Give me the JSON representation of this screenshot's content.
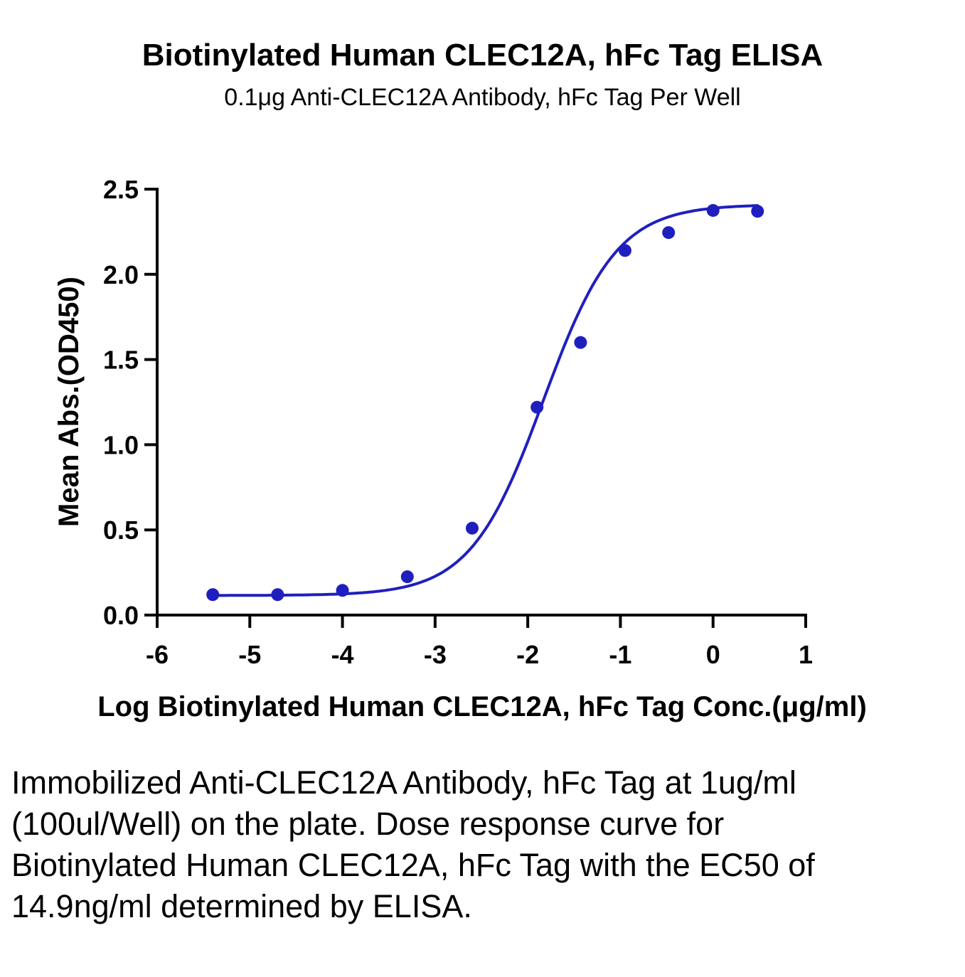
{
  "chart_data": {
    "type": "scatter",
    "title": "Biotinylated Human CLEC12A, hFc Tag ELISA",
    "subtitle": "0.1μg Anti-CLEC12A Antibody, hFc Tag Per Well",
    "xlabel": "Log Biotinylated Human CLEC12A, hFc Tag Conc.(μg/ml)",
    "ylabel": "Mean Abs.(OD450)",
    "xlim": [
      -6,
      1
    ],
    "ylim": [
      0,
      2.5
    ],
    "x_ticks": [
      -6,
      -5,
      -4,
      -3,
      -2,
      -1,
      0,
      1
    ],
    "x_tick_labels": [
      "-6",
      "-5",
      "-4",
      "-3",
      "-2",
      "-1",
      "0",
      "1"
    ],
    "y_ticks": [
      0,
      0.5,
      1.0,
      1.5,
      2.0,
      2.5
    ],
    "y_tick_labels": [
      "0.0",
      "0.5",
      "1.0",
      "1.5",
      "2.0",
      "2.5"
    ],
    "grid": false,
    "color": "#1f1fbf",
    "points": [
      {
        "x": -5.4,
        "y": 0.12
      },
      {
        "x": -4.7,
        "y": 0.12
      },
      {
        "x": -4.0,
        "y": 0.145
      },
      {
        "x": -3.3,
        "y": 0.225
      },
      {
        "x": -2.6,
        "y": 0.51
      },
      {
        "x": -1.9,
        "y": 1.22
      },
      {
        "x": -1.43,
        "y": 1.6
      },
      {
        "x": -0.95,
        "y": 2.14
      },
      {
        "x": -0.48,
        "y": 2.245
      },
      {
        "x": 0.0,
        "y": 2.375
      },
      {
        "x": 0.48,
        "y": 2.37
      }
    ],
    "fit_curve": {
      "model": "4PL",
      "bottom": 0.115,
      "top": 2.41,
      "logEC50": -1.83,
      "hill": 1.1,
      "x_range": [
        -5.4,
        0.48
      ]
    }
  },
  "caption": "Immobilized Anti-CLEC12A Antibody, hFc Tag at 1ug/ml (100ul/Well) on the plate. Dose response curve for Biotinylated Human CLEC12A, hFc Tag with the EC50 of 14.9ng/ml determined by ELISA."
}
